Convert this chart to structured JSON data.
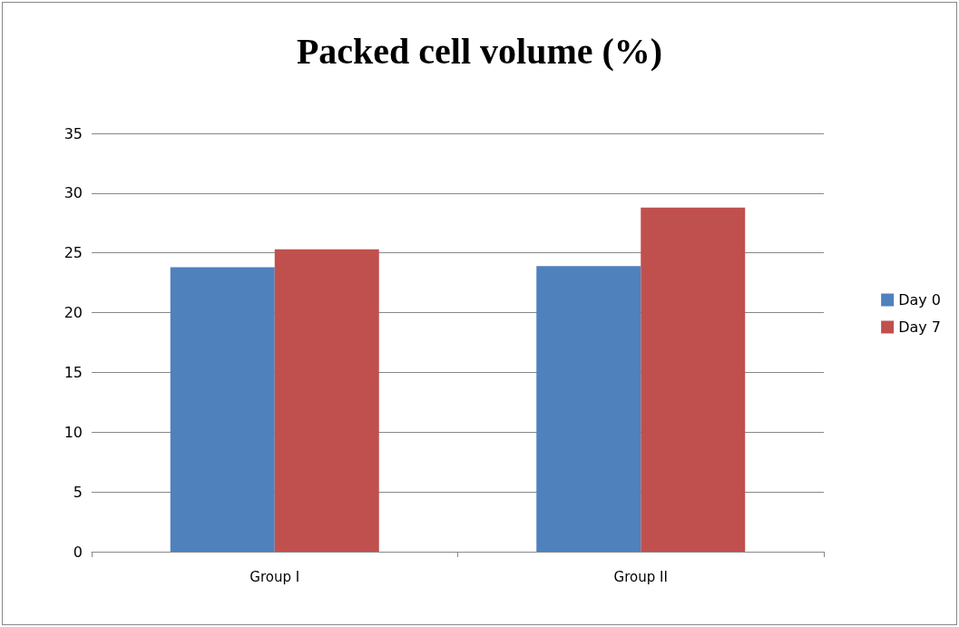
{
  "chart_data": {
    "type": "bar",
    "title": "Packed cell volume (%)",
    "categories": [
      "Group I",
      "Group II"
    ],
    "series": [
      {
        "name": "Day 0",
        "color": "#4f81bd",
        "values": [
          23.8,
          23.9
        ]
      },
      {
        "name": "Day 7",
        "color": "#c0504d",
        "values": [
          25.3,
          28.8
        ]
      }
    ],
    "ylim": [
      0,
      35
    ],
    "yticks": [
      0,
      5,
      10,
      15,
      20,
      25,
      30,
      35
    ],
    "grid": "y",
    "legend": "right"
  }
}
